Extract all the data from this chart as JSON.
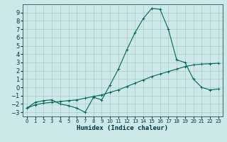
{
  "xlabel": "Humidex (Indice chaleur)",
  "background_color": "#cce8e8",
  "grid_color": "#aacccc",
  "line_color": "#006655",
  "xlim": [
    -0.5,
    23.5
  ],
  "ylim": [
    -3.5,
    10.0
  ],
  "xticks": [
    0,
    1,
    2,
    3,
    4,
    5,
    6,
    7,
    8,
    9,
    10,
    11,
    12,
    13,
    14,
    15,
    16,
    17,
    18,
    19,
    20,
    21,
    22,
    23
  ],
  "yticks": [
    -3,
    -2,
    -1,
    0,
    1,
    2,
    3,
    4,
    5,
    6,
    7,
    8,
    9
  ],
  "line1_x": [
    0,
    1,
    2,
    3,
    4,
    5,
    6,
    7,
    8,
    9,
    10,
    11,
    12,
    13,
    14,
    15,
    16,
    17,
    18,
    19,
    20,
    21,
    22,
    23
  ],
  "line1_y": [
    -2.5,
    -1.8,
    -1.6,
    -1.5,
    -2.0,
    -2.2,
    -2.5,
    -3.0,
    -1.2,
    -1.5,
    0.3,
    2.2,
    4.5,
    6.6,
    8.3,
    9.5,
    9.4,
    7.0,
    3.3,
    3.0,
    1.0,
    0.0,
    -0.3,
    -0.2
  ],
  "line2_x": [
    0,
    1,
    2,
    3,
    4,
    5,
    6,
    7,
    8,
    9,
    10,
    11,
    12,
    13,
    14,
    15,
    16,
    17,
    18,
    19,
    20,
    21,
    22,
    23
  ],
  "line2_y": [
    -2.5,
    -2.1,
    -1.9,
    -1.8,
    -1.7,
    -1.6,
    -1.5,
    -1.3,
    -1.1,
    -0.9,
    -0.6,
    -0.3,
    0.1,
    0.5,
    0.9,
    1.3,
    1.6,
    1.9,
    2.2,
    2.5,
    2.7,
    2.8,
    2.85,
    2.9
  ]
}
